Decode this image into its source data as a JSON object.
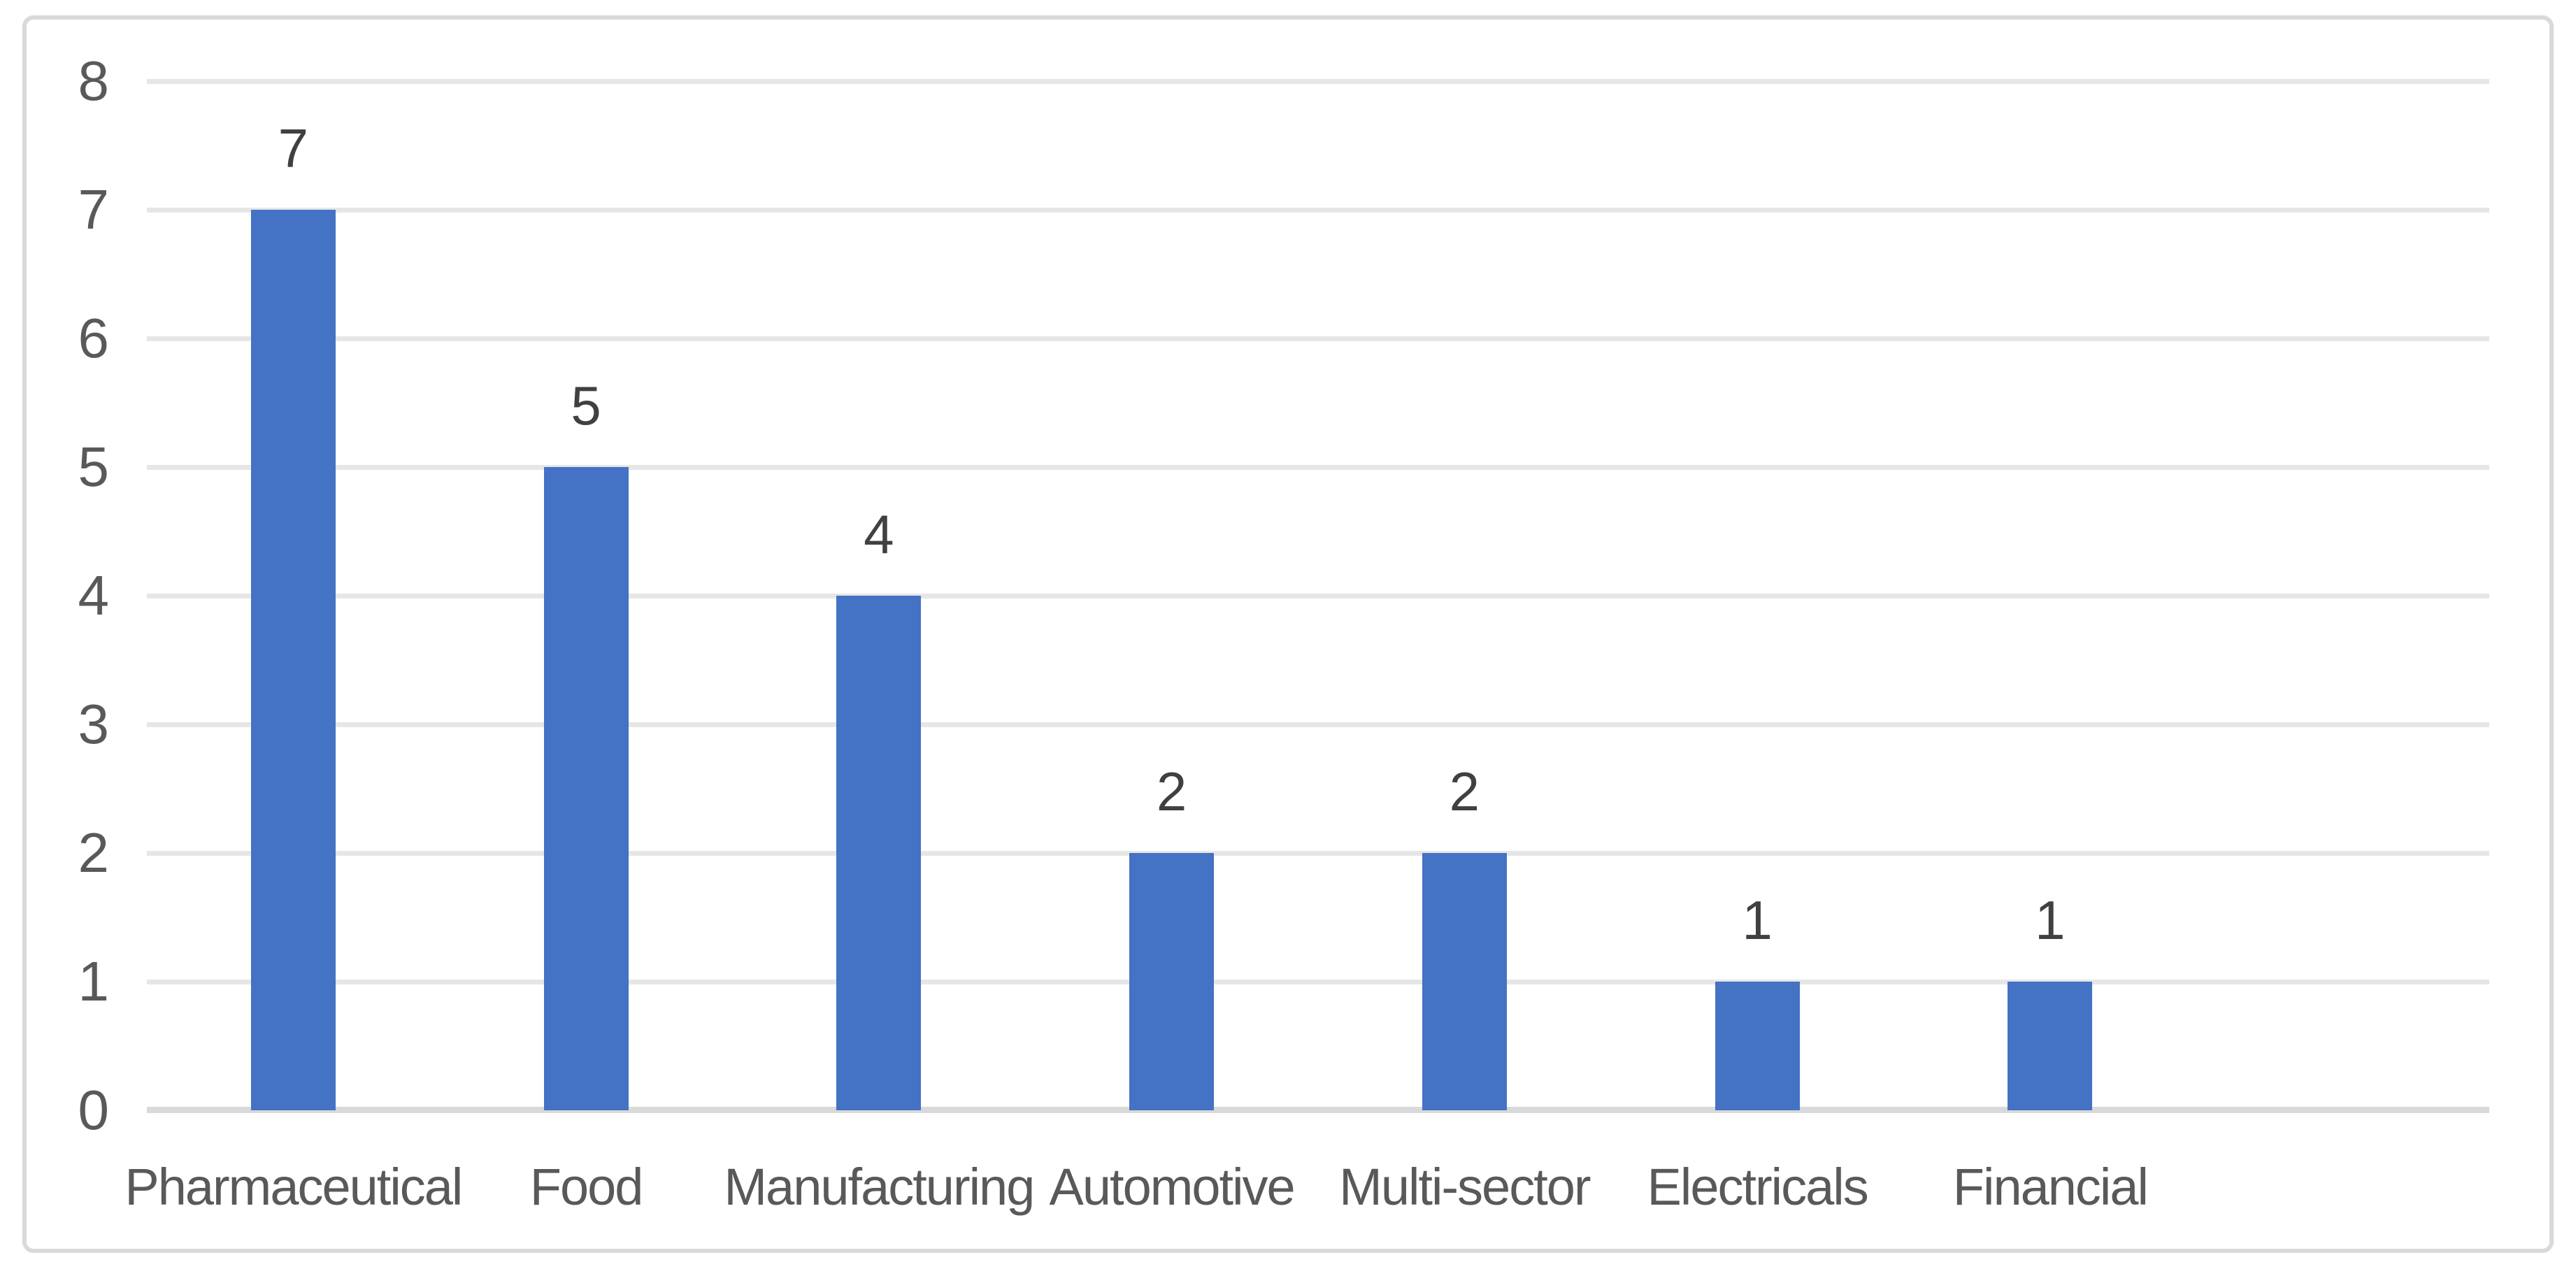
{
  "chart_data": {
    "type": "bar",
    "title": "",
    "xlabel": "",
    "ylabel": "",
    "categories": [
      "Pharmaceutical",
      "Food",
      "Manufacturing",
      "Automotive",
      "Multi-sector",
      "Electricals",
      "Financial"
    ],
    "values": [
      7,
      5,
      4,
      2,
      2,
      1,
      1
    ],
    "data_labels": [
      "7",
      "5",
      "4",
      "2",
      "2",
      "1",
      "1"
    ],
    "ytick_labels": [
      "0",
      "1",
      "2",
      "3",
      "4",
      "5",
      "6",
      "7",
      "8"
    ],
    "yticks": [
      0,
      1,
      2,
      3,
      4,
      5,
      6,
      7,
      8
    ],
    "ylim": [
      0,
      8
    ],
    "grid": "horizontal",
    "legend": "none",
    "bar_orientation": "vertical",
    "extra_empty_category_slots": 1,
    "colors": {
      "bar": "#4472C4",
      "gridline": "#E6E6E6",
      "axis_line": "#D9D9D9",
      "chart_border": "#D9D9D9",
      "tick_label_text": "#595959",
      "category_label_text": "#595959",
      "data_label_text": "#404040",
      "background": "#FFFFFF"
    }
  }
}
